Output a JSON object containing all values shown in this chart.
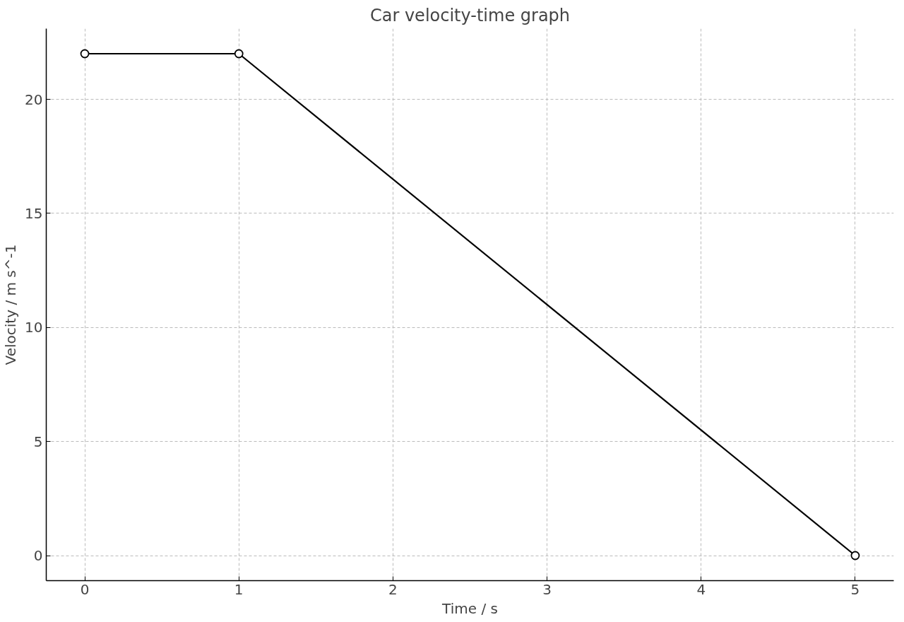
{
  "chart_data": {
    "type": "line",
    "title": "Car velocity-time graph",
    "xlabel": "Time / s",
    "ylabel": "Velocity / m s^-1",
    "x": [
      0,
      1,
      5
    ],
    "series": [
      {
        "color": "#000000",
        "values": [
          22,
          22,
          0
        ]
      }
    ],
    "xlim": [
      -0.25,
      5.25
    ],
    "xticks": [
      0,
      1,
      2,
      3,
      4,
      5
    ],
    "ylim": [
      -1.1,
      23.1
    ],
    "yticks": [
      0,
      5,
      10,
      15,
      20
    ],
    "grid": true,
    "marker": "circle",
    "line_style": "solid"
  }
}
